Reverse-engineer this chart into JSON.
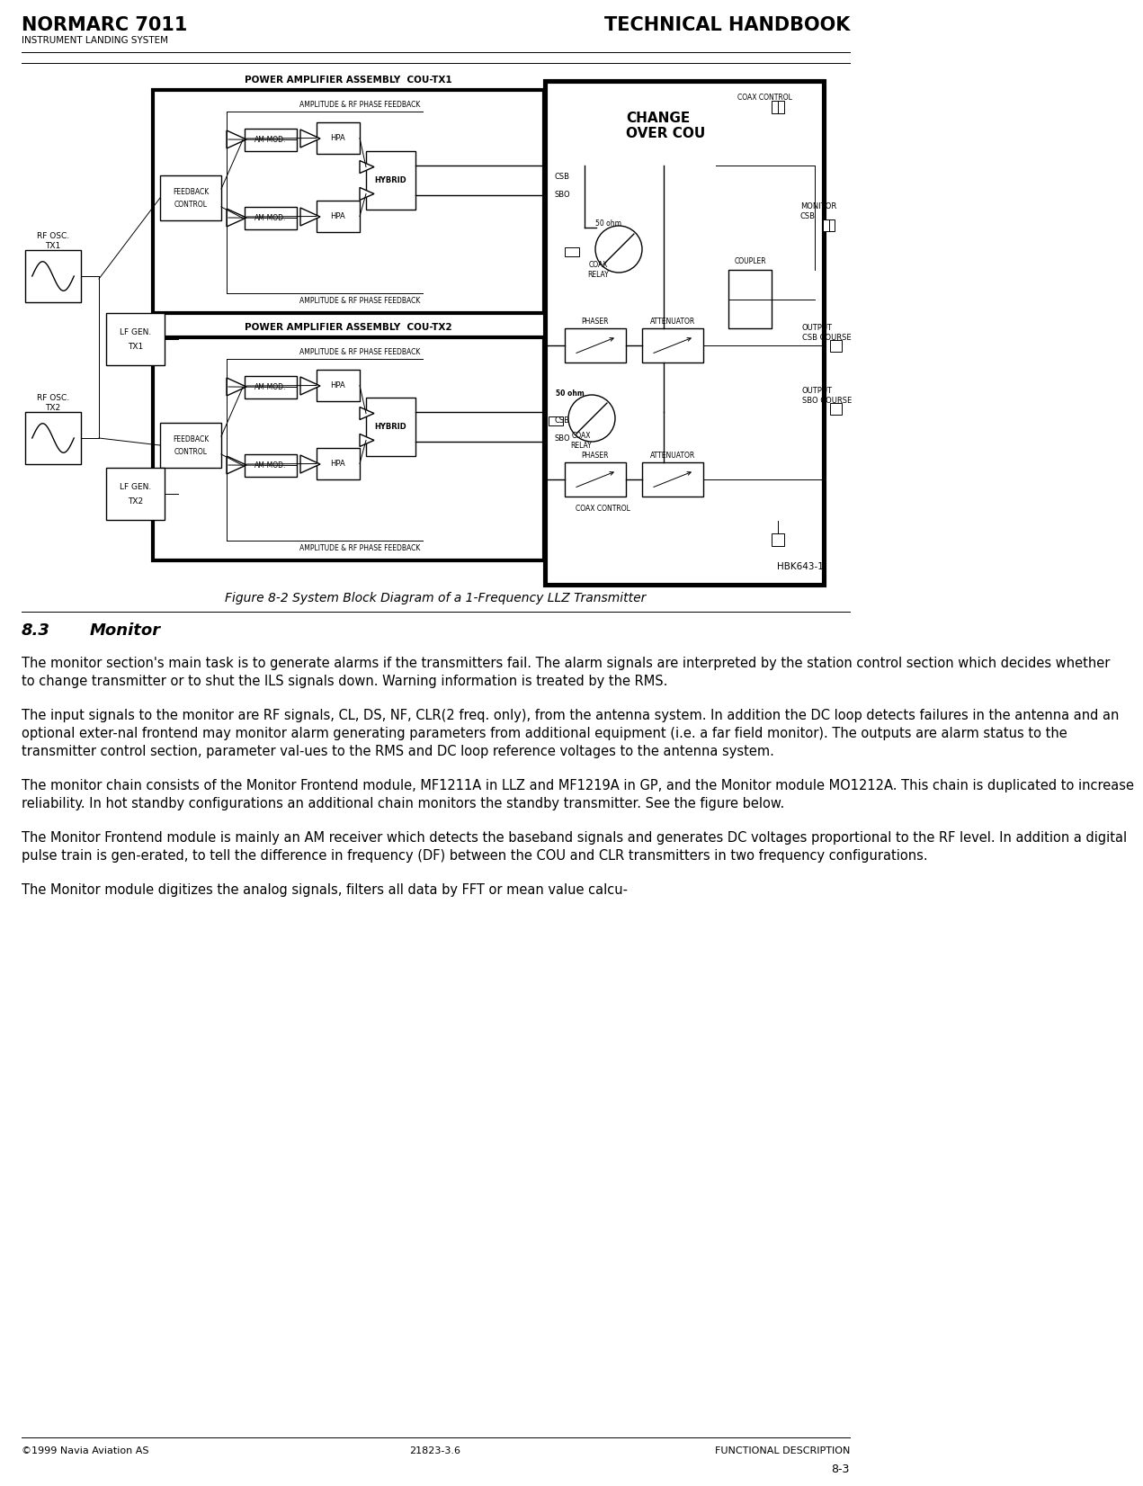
{
  "page_title_left": "NORMARC 7011",
  "page_title_right": "TECHNICAL HANDBOOK",
  "page_subtitle": "INSTRUMENT LANDING SYSTEM",
  "footer_left": "©1999 Navia Aviation AS",
  "footer_center": "21823-3.6",
  "footer_right": "FUNCTIONAL DESCRIPTION",
  "page_number": "8-3",
  "figure_caption": "Figure 8-2 System Block Diagram of a 1-Frequency LLZ Transmitter",
  "section_title_num": "8.3",
  "section_title_text": "Monitor",
  "para1": "The monitor section's main task is to generate alarms if the transmitters fail. The alarm signals are interpreted by the station control section which decides whether to change transmitter or to shut the ILS signals down. Warning information is treated by the RMS.",
  "para2": "The input signals to the monitor are RF signals, CL, DS, NF, CLR(2 freq. only), from the antenna system. In addition the DC loop detects failures in the antenna and an optional exter-nal frontend may monitor alarm generating parameters from additional equipment (i.e. a far field monitor). The outputs are alarm status to the transmitter control section, parameter val-ues to the RMS and DC loop reference voltages to the antenna system.",
  "para3_pre": "The monitor chain consists of the Monitor Frontend module, MF1211A in LLZ and MF1219A in GP, and the Monitor module MO1212A. This chain is duplicated to increase reliability. In ",
  "para3_italic": "hot\nstandby",
  "para3_post": " configurations an additional chain monitors the standby transmitter. See the figure below.",
  "para4_pre": "The ",
  "para4_italic1": "Monitor Frontend",
  "para4_mid": " module is mainly an AM receiver which detects the baseband signals and generates DC voltages proportional to the RF level. In addition a digital pulse train is gen-erated, to tell the difference in frequency (DF) between the COU and CLR transmitters in ",
  "para4_italic2": "two\nfrequency",
  "para4_post": " configurations.",
  "para5_pre": "The ",
  "para5_italic": "Monitor",
  "para5_post": " module digitizes the analog signals, filters all data by FFT or mean value calcu-",
  "diagram_title1": "POWER AMPLIFIER ASSEMBLY  COU-TX1",
  "diagram_title2": "POWER AMPLIFIER ASSEMBLY  COU-TX2",
  "changeover_label": "CHANGE\nOVER COU",
  "hbk_label": "HBK643-1",
  "bg_color": "#ffffff"
}
